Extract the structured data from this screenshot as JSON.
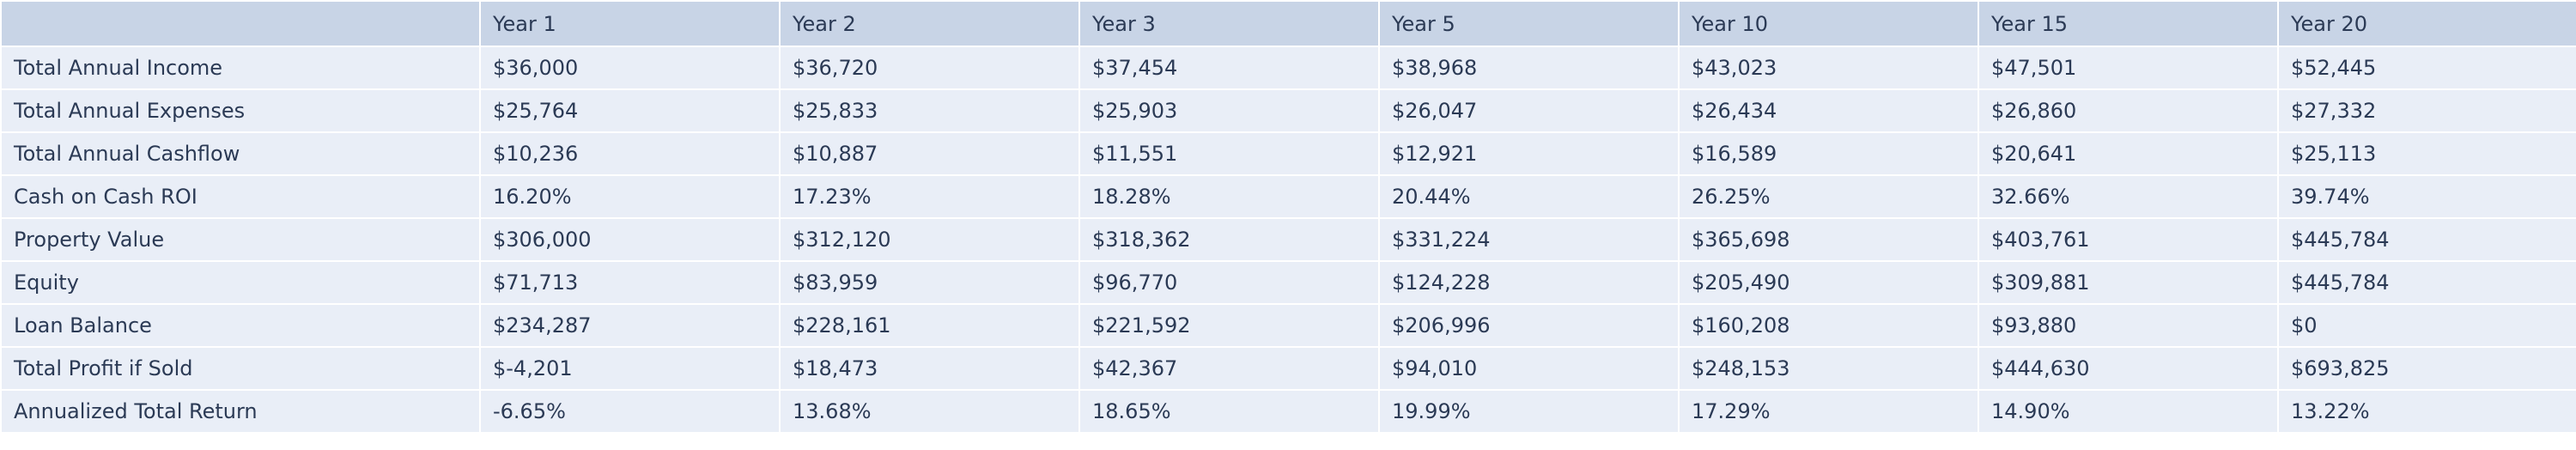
{
  "table": {
    "columns": [
      "",
      "Year 1",
      "Year 2",
      "Year 3",
      "Year 5",
      "Year 10",
      "Year 15",
      "Year 20"
    ],
    "rows": [
      {
        "label": "Total Annual Income",
        "values": [
          "$36,000",
          "$36,720",
          "$37,454",
          "$38,968",
          "$43,023",
          "$47,501",
          "$52,445"
        ]
      },
      {
        "label": "Total Annual Expenses",
        "values": [
          "$25,764",
          "$25,833",
          "$25,903",
          "$26,047",
          "$26,434",
          "$26,860",
          "$27,332"
        ]
      },
      {
        "label": "Total Annual Cashflow",
        "values": [
          "$10,236",
          "$10,887",
          "$11,551",
          "$12,921",
          "$16,589",
          "$20,641",
          "$25,113"
        ]
      },
      {
        "label": "Cash on Cash ROI",
        "values": [
          "16.20%",
          "17.23%",
          "18.28%",
          "20.44%",
          "26.25%",
          "32.66%",
          "39.74%"
        ]
      },
      {
        "label": "Property Value",
        "values": [
          "$306,000",
          "$312,120",
          "$318,362",
          "$331,224",
          "$365,698",
          "$403,761",
          "$445,784"
        ]
      },
      {
        "label": "Equity",
        "values": [
          "$71,713",
          "$83,959",
          "$96,770",
          "$124,228",
          "$205,490",
          "$309,881",
          "$445,784"
        ]
      },
      {
        "label": "Loan Balance",
        "values": [
          "$234,287",
          "$228,161",
          "$221,592",
          "$206,996",
          "$160,208",
          "$93,880",
          "$0"
        ]
      },
      {
        "label": "Total Profit if Sold",
        "values": [
          "$-4,201",
          "$18,473",
          "$42,367",
          "$94,010",
          "$248,153",
          "$444,630",
          "$693,825"
        ]
      },
      {
        "label": "Annualized Total Return",
        "values": [
          "-6.65%",
          "13.68%",
          "18.65%",
          "19.99%",
          "17.29%",
          "14.90%",
          "13.22%"
        ]
      }
    ]
  }
}
